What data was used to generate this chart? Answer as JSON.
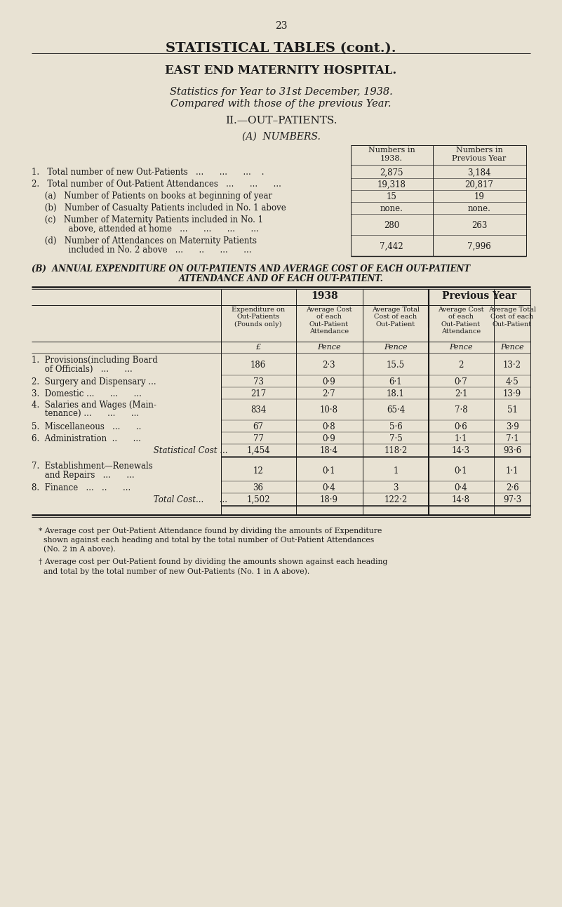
{
  "bg_color": "#e8e2d3",
  "text_color": "#1a1a1a",
  "page_number": "23",
  "title1": "STATISTICAL TABLES (cont.).",
  "title2": "EAST END MATERNITY HOSPITAL.",
  "subtitle1": "Statistics for Year to 31st December, 1938.",
  "subtitle2": "Compared with those of the previous Year.",
  "section_title": "II.—OUT–PATIENTS.",
  "sub_section_A": "(A)  NUMBERS.",
  "numbers_col1": "Numbers in\n1938.",
  "numbers_col2": "Numbers in\nPrevious Year",
  "numbers_rows": [
    {
      "label": "1.   Total number of new Out-Patients   ...      ...      ...    .",
      "val1": "2,875",
      "val2": "3,184",
      "indent": 0
    },
    {
      "label": "2.   Total number of Out-Patient Attendances   ...      ...      ...",
      "val1": "19,318",
      "val2": "20,817",
      "indent": 0
    },
    {
      "label": "     (a)   Number of Patients on books at beginning of year",
      "val1": "15",
      "val2": "19",
      "indent": 1
    },
    {
      "label": "     (b)   Number of Casualty Patients included in No. 1 above",
      "val1": "none.",
      "val2": "none.",
      "indent": 1
    },
    {
      "label_line1": "     (c)   Number of Maternity Patients included in No. 1",
      "label_line2": "              above, attended at home   ...      ...      ...      ...",
      "val1": "280",
      "val2": "263",
      "indent": 1,
      "two_line": true
    },
    {
      "label_line1": "     (d)   Number of Attendances on Maternity Patients",
      "label_line2": "              included in No. 2 above   ...      ..      ...      ...",
      "val1": "7,442",
      "val2": "7,996",
      "indent": 1,
      "two_line": true
    }
  ],
  "section_B_line1": "(B)  ANNUAL EXPENDITURE ON OUT-PATIENTS AND AVERAGE COST OF EACH OUT-PATIENT",
  "section_B_line2": "ATTENDANCE AND OF EACH OUT-PATIENT.",
  "tbl_group1": "1938",
  "tbl_group2": "Previous Year",
  "tbl_sub_headers": [
    "Expenditure on\nOut-Patients\n(Pounds only)",
    "Average Cost\nof each\nOut-Patient\nAttendance",
    "Average Total\nCost of each\nOut-Patient",
    "Average Cost\nof each\nOut-Patient\nAttendance",
    "Average Total\nCost of each\nOut-Patient"
  ],
  "tbl_units": [
    "£",
    "Pence",
    "Pence",
    "Pence",
    "Pence"
  ],
  "tbl_rows": [
    {
      "label_line1": "1.  Provisions(including Board",
      "label_line2": "     of Officials)   ...      ...",
      "vals": [
        "186",
        "2·3",
        "15.5",
        "2",
        "13·2"
      ],
      "is_subtotal": false,
      "two_line": true
    },
    {
      "label": "2.  Surgery and Dispensary ...",
      "vals": [
        "73",
        "0·9",
        "6·1",
        "0·7",
        "4·5"
      ],
      "is_subtotal": false,
      "two_line": false
    },
    {
      "label": "3.  Domestic ...      ...      ...",
      "vals": [
        "217",
        "2·7",
        "18.1",
        "2·1",
        "13·9"
      ],
      "is_subtotal": false,
      "two_line": false
    },
    {
      "label_line1": "4.  Salaries and Wages (Main-",
      "label_line2": "     tenance) ...      ...      ...",
      "vals": [
        "834",
        "10·8",
        "65·4",
        "7·8",
        "51"
      ],
      "is_subtotal": false,
      "two_line": true
    },
    {
      "label": "5.  Miscellaneous   ...      ..",
      "vals": [
        "67",
        "0·8",
        "5·6",
        "0·6",
        "3·9"
      ],
      "is_subtotal": false,
      "two_line": false
    },
    {
      "label": "6.  Administration  ..      ...",
      "vals": [
        "77",
        "0·9",
        "7·5",
        "1·1",
        "7·1"
      ],
      "is_subtotal": false,
      "two_line": false
    },
    {
      "label": "     Statistical Cost ...",
      "vals": [
        "1,454",
        "18·4",
        "118·2",
        "14·3",
        "93·6"
      ],
      "is_subtotal": true,
      "two_line": false
    },
    {
      "label_line1": "7.  Establishment—Renewals",
      "label_line2": "     and Repairs   ...      ...",
      "vals": [
        "12",
        "0·1",
        "1",
        "0·1",
        "1·1"
      ],
      "is_subtotal": false,
      "two_line": true
    },
    {
      "label": "8.  Finance   ...   ..      ...",
      "vals": [
        "36",
        "0·4",
        "3",
        "0·4",
        "2·6"
      ],
      "is_subtotal": false,
      "two_line": false
    },
    {
      "label": "     Total Cost...      ...",
      "vals": [
        "1,502",
        "18·9",
        "122·2",
        "14·8",
        "97·3"
      ],
      "is_subtotal": true,
      "two_line": false
    }
  ],
  "footnote1_star": "* Average cost per Out-Patient Attendance found by dividing the amounts of Expenditure",
  "footnote1_line2": "  shown against each heading and total by the total number of Out-Patient Attendances",
  "footnote1_line3": "  (No. 2 in A above).",
  "footnote2_dagger": "† Average cost per Out-Patient found by dividing the amounts shown against each heading",
  "footnote2_line2": "  and total by the total number of new Out-Patients (No. 1 in A above)."
}
